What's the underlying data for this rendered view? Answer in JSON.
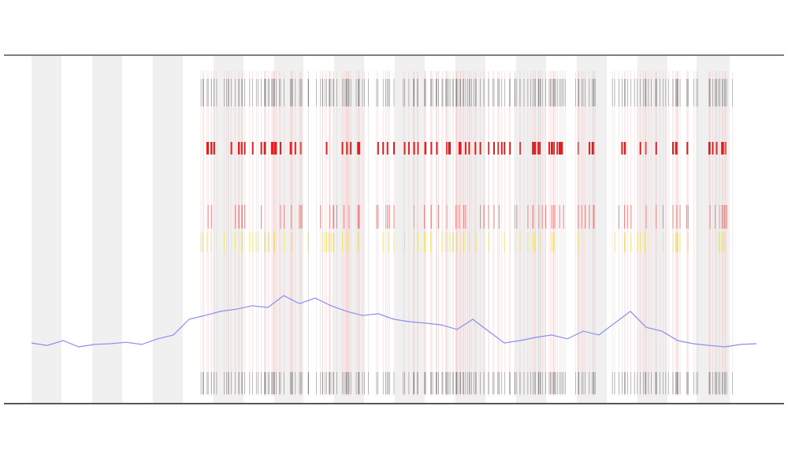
{
  "chart_data": {
    "type": "line",
    "x": [
      0,
      1,
      2,
      3,
      4,
      5,
      6,
      7,
      8,
      9,
      10,
      11,
      12,
      13,
      14,
      15,
      16,
      17,
      18,
      19,
      20,
      21,
      22,
      23,
      24,
      25,
      26,
      27,
      28,
      29,
      30,
      31,
      32,
      33,
      34,
      35,
      36,
      37,
      38,
      39,
      40,
      41,
      42,
      43,
      44,
      45,
      46
    ],
    "series": [
      {
        "color": "#8a8ef0",
        "values": [
          17.4,
          16.7,
          18.1,
          16.3,
          17.0,
          17.2,
          17.6,
          17.0,
          18.6,
          19.7,
          24.2,
          25.3,
          26.5,
          27.1,
          28.1,
          27.6,
          31.0,
          28.7,
          30.3,
          28.1,
          26.5,
          25.3,
          25.8,
          24.2,
          23.5,
          23.1,
          22.6,
          21.3,
          24.2,
          20.8,
          17.4,
          18.1,
          19.0,
          19.7,
          18.6,
          20.8,
          19.7,
          23.1,
          26.5,
          21.9,
          20.8,
          18.1,
          17.2,
          16.7,
          16.3,
          17.0,
          17.2
        ]
      }
    ],
    "xlim": [
      -1.75,
      47.75
    ],
    "ylim": [
      0,
      100
    ]
  }
}
